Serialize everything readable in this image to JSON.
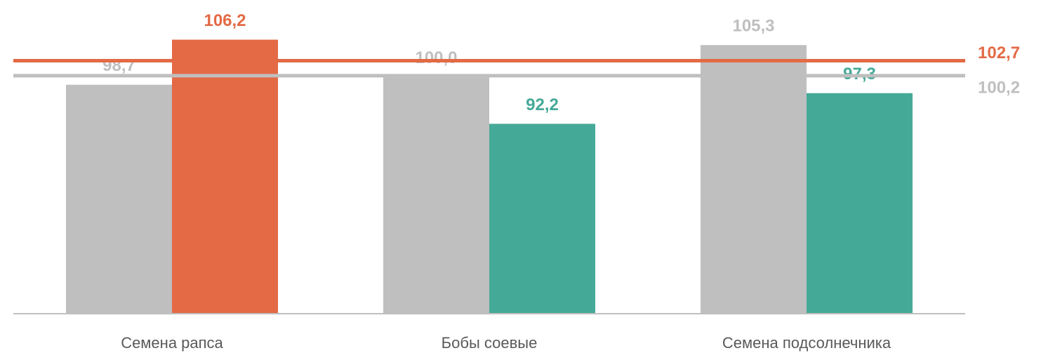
{
  "chart_data": {
    "type": "bar",
    "categories": [
      "Семена рапса",
      "Бобы соевые",
      "Семена подсолнечника"
    ],
    "series": [
      {
        "color": "#bfbfbf",
        "values": [
          98.7,
          100.0,
          105.3
        ],
        "value_labels": [
          "98,7",
          "100,0",
          "105,3"
        ]
      },
      {
        "colors": [
          "#e36a45",
          "#45a998",
          "#45a998"
        ],
        "values": [
          106.2,
          92.2,
          97.3
        ],
        "value_labels": [
          "106,2",
          "92,2",
          "97,3"
        ]
      }
    ],
    "reference_lines": [
      {
        "value": 102.7,
        "label": "102,7",
        "color": "#e36a45"
      },
      {
        "value": 100.2,
        "label": "100,2",
        "color": "#bfbfbf"
      }
    ],
    "ylim": [
      60.6,
      110
    ]
  }
}
